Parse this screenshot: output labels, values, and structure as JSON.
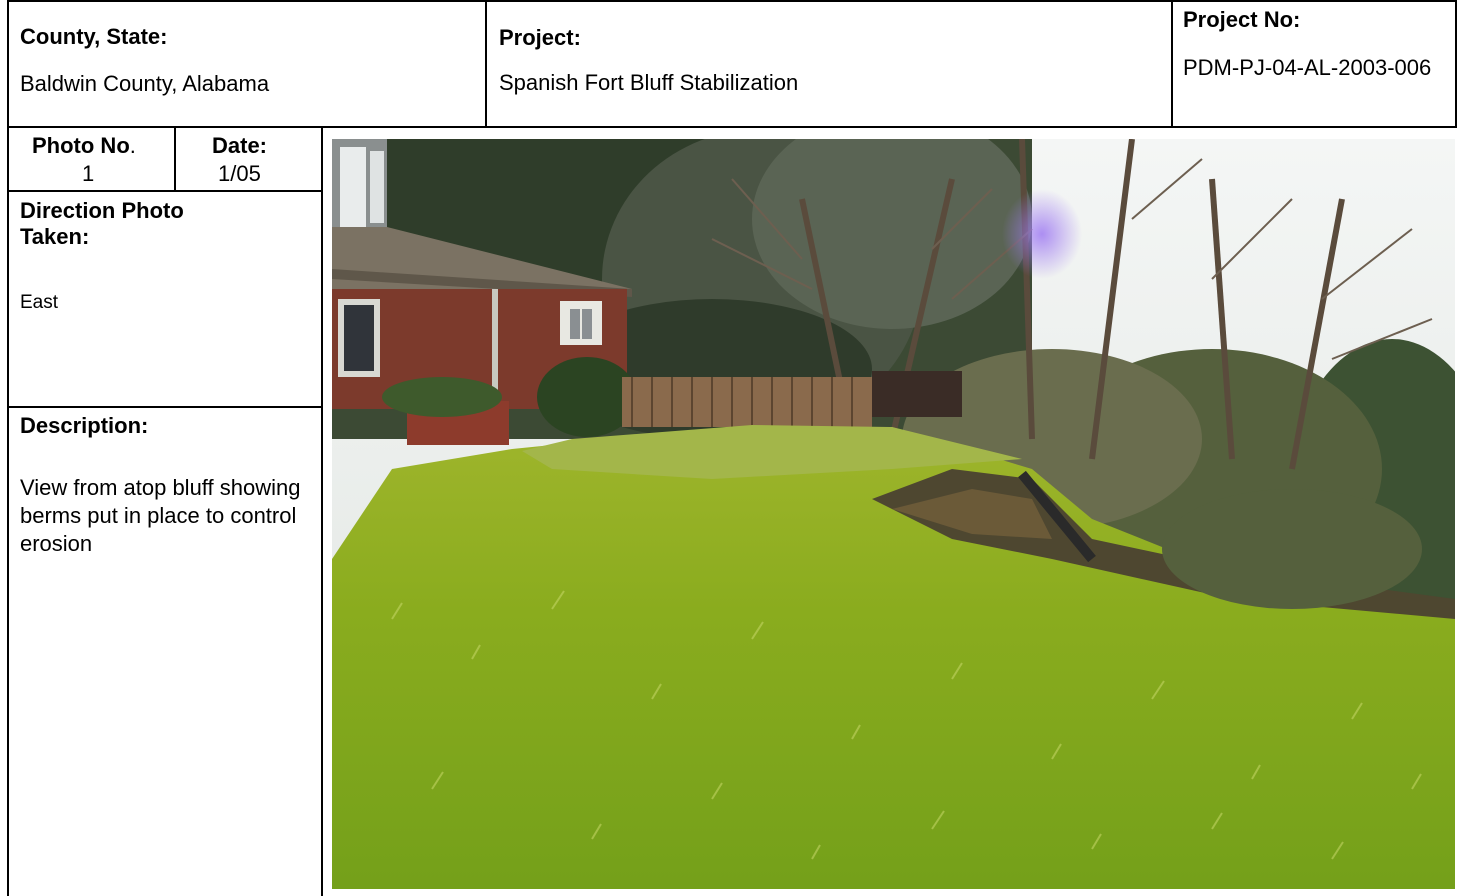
{
  "header": {
    "county_label": "County, State:",
    "county_value": "Baldwin County, Alabama",
    "project_label": "Project:",
    "project_value": "Spanish Fort Bluff Stabilization",
    "project_no_label": "Project No:",
    "project_no_value": "PDM-PJ-04-AL-2003-006"
  },
  "photo_info": {
    "photo_no_label": "Photo No",
    "photo_no_dot": ".",
    "photo_no_value": "1",
    "date_label": "Date:",
    "date_value": "1/05",
    "direction_label": "Direction Photo Taken:",
    "direction_value": "East",
    "description_label": "Description:",
    "description_value": "View from atop bluff showing berms put in place to control erosion"
  }
}
